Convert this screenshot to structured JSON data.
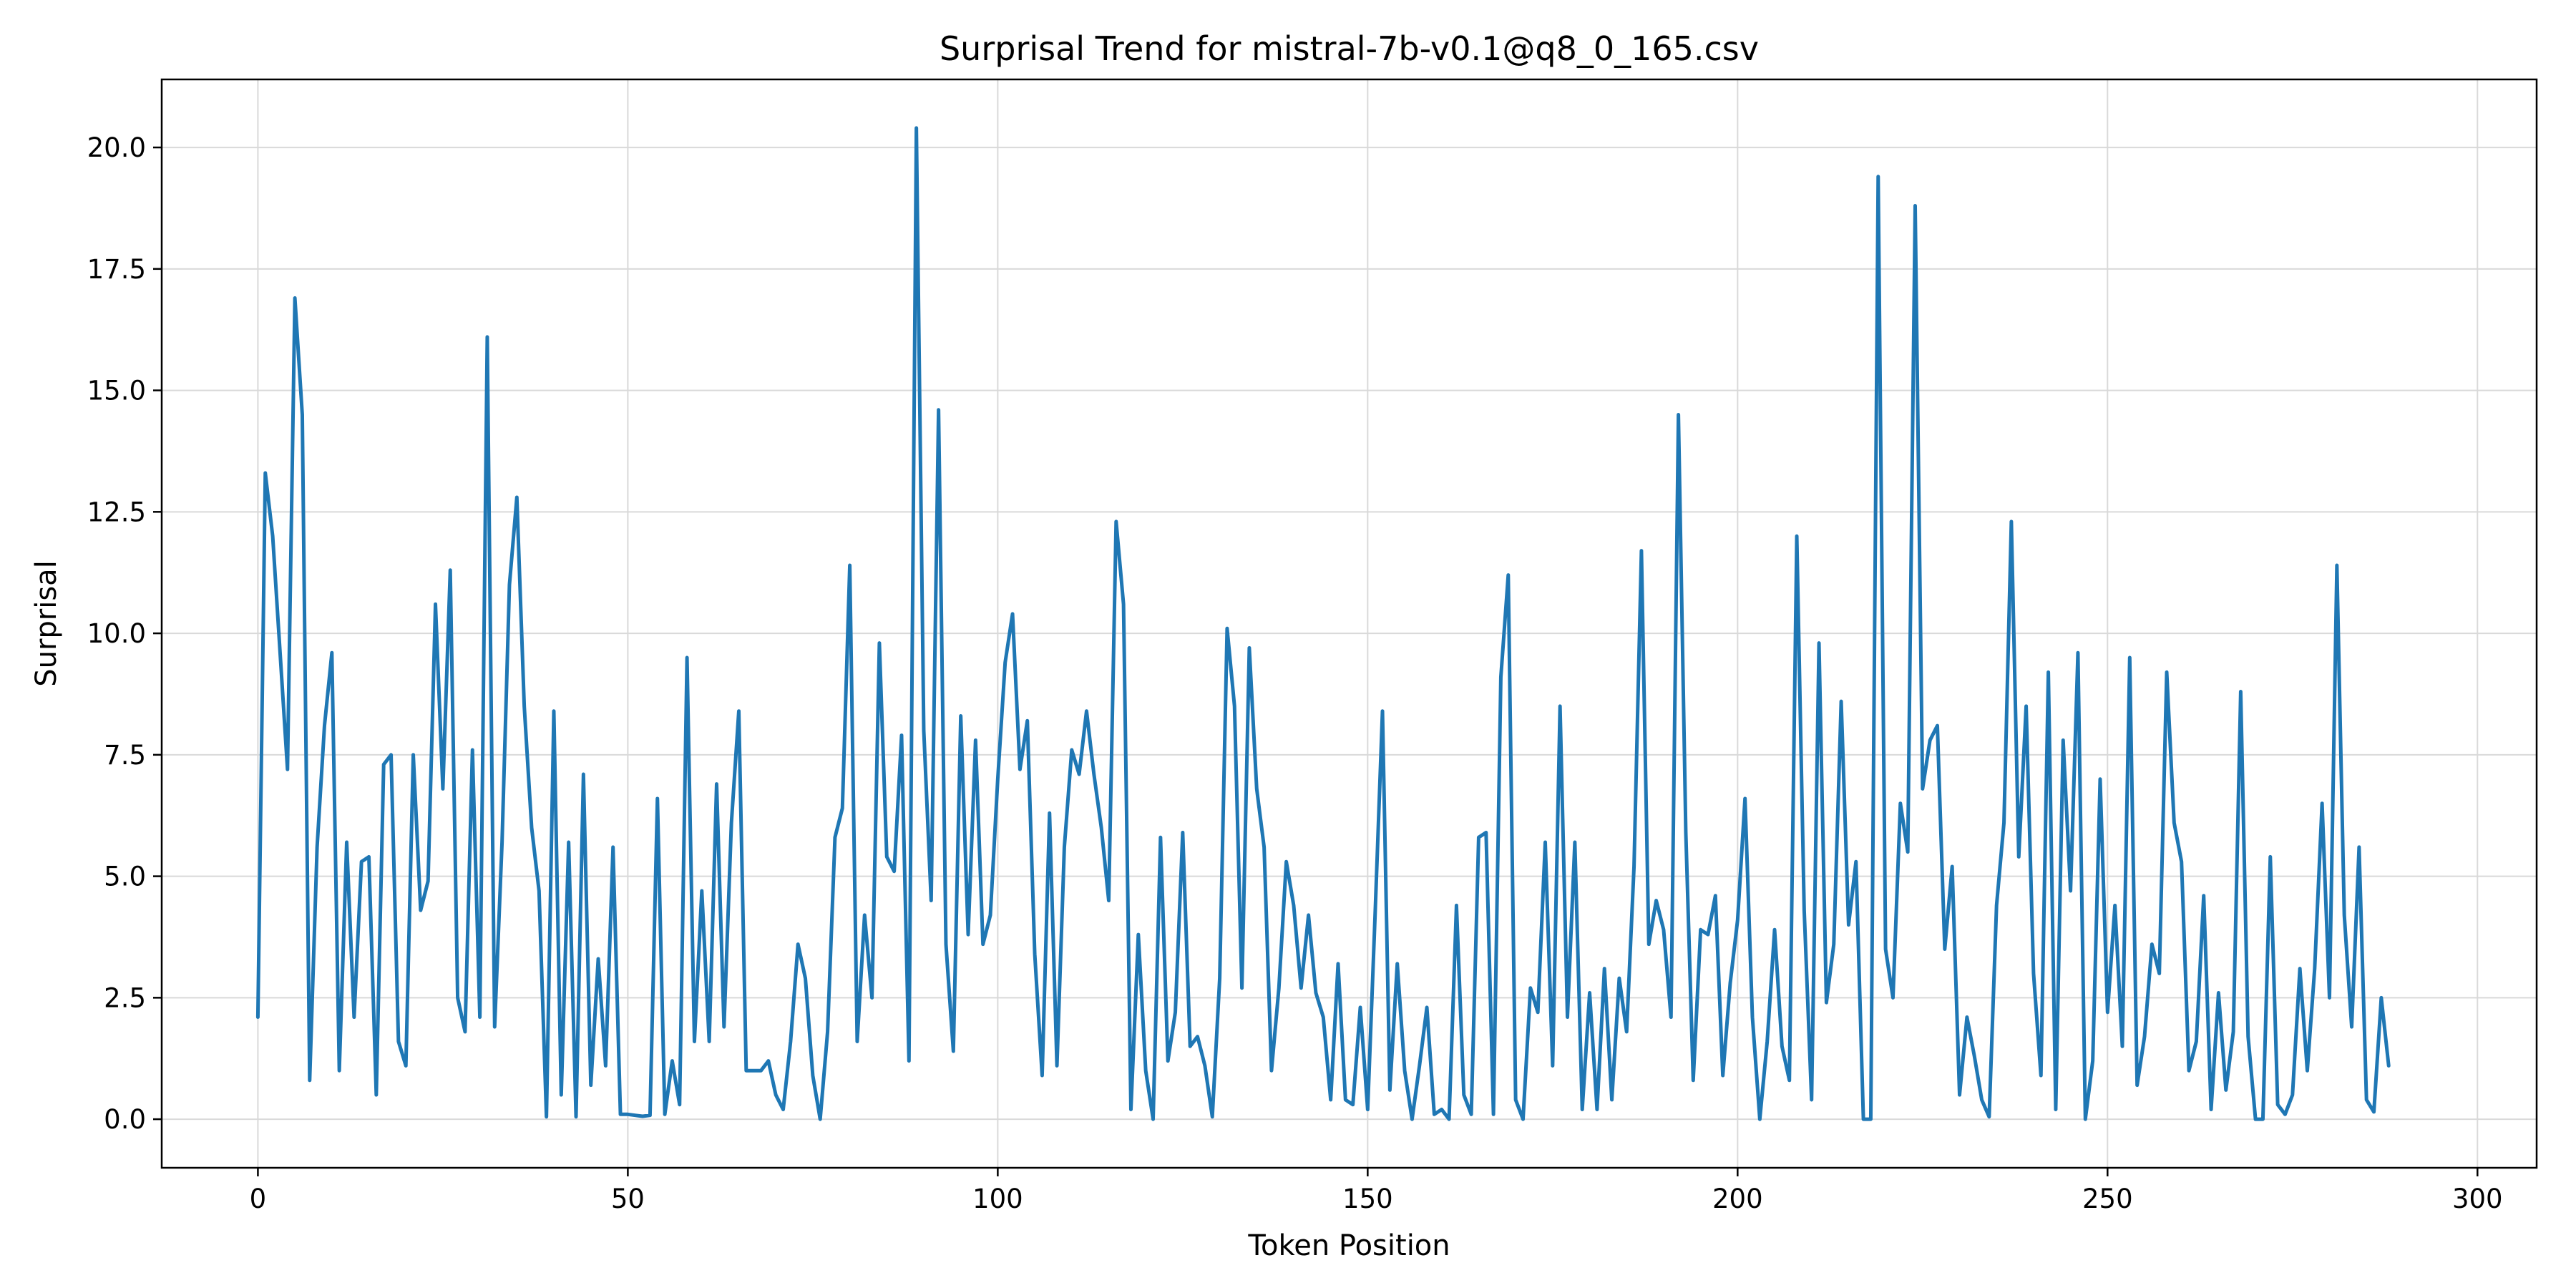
{
  "chart_data": {
    "type": "line",
    "title": "Surprisal Trend for mistral-7b-v0.1@q8_0_165.csv",
    "xlabel": "Token Position",
    "ylabel": "Surprisal",
    "xlim": [
      -13,
      308
    ],
    "ylim": [
      -1,
      21.4
    ],
    "xticks": [
      0,
      50,
      100,
      150,
      200,
      250,
      300
    ],
    "xtick_labels": [
      "0",
      "50",
      "100",
      "150",
      "200",
      "250",
      "300"
    ],
    "yticks": [
      0,
      2.5,
      5,
      7.5,
      10,
      12.5,
      15,
      17.5,
      20
    ],
    "ytick_labels": [
      "0.0",
      "2.5",
      "5.0",
      "7.5",
      "10.0",
      "12.5",
      "15.0",
      "17.5",
      "20.0"
    ],
    "grid": true,
    "line_color": "#1f77b4",
    "series": [
      {
        "values": [
          2.1,
          13.3,
          12.0,
          9.6,
          7.2,
          16.9,
          14.5,
          0.8,
          5.6,
          8.1,
          9.6,
          1.0,
          5.7,
          2.1,
          5.3,
          5.4,
          0.5,
          7.3,
          7.5,
          1.6,
          1.1,
          7.5,
          4.3,
          4.9,
          10.6,
          6.8,
          11.3,
          2.5,
          1.8,
          7.6,
          2.1,
          16.1,
          1.9,
          5.7,
          11.0,
          12.8,
          8.5,
          6.0,
          4.7,
          0.05,
          8.4,
          0.5,
          5.7,
          0.05,
          7.1,
          0.7,
          3.3,
          1.1,
          5.6,
          0.1,
          0.1,
          0.08,
          0.06,
          0.08,
          6.6,
          0.1,
          1.2,
          0.3,
          9.5,
          1.6,
          4.7,
          1.6,
          6.9,
          1.9,
          6.1,
          8.4,
          1.0,
          1.0,
          1.0,
          1.2,
          0.5,
          0.2,
          1.6,
          3.6,
          2.9,
          0.9,
          0.0,
          1.8,
          5.8,
          6.4,
          11.4,
          1.6,
          4.2,
          2.5,
          9.8,
          5.4,
          5.1,
          7.9,
          1.2,
          20.4,
          8.0,
          4.5,
          14.6,
          3.6,
          1.4,
          8.3,
          3.8,
          7.8,
          3.6,
          4.2,
          7.0,
          9.4,
          10.4,
          7.2,
          8.2,
          3.4,
          0.9,
          6.3,
          1.1,
          5.6,
          7.6,
          7.1,
          8.4,
          7.1,
          6.0,
          4.5,
          12.3,
          10.6,
          0.2,
          3.8,
          1.0,
          0.0,
          5.8,
          1.2,
          2.2,
          5.9,
          1.5,
          1.7,
          1.1,
          0.05,
          2.9,
          10.1,
          8.5,
          2.7,
          9.7,
          6.8,
          5.6,
          1.0,
          2.7,
          5.3,
          4.4,
          2.7,
          4.2,
          2.6,
          2.1,
          0.4,
          3.2,
          0.4,
          0.3,
          2.3,
          0.2,
          4.2,
          8.4,
          0.6,
          3.2,
          1.0,
          0.0,
          1.1,
          2.3,
          0.1,
          0.2,
          0.0,
          4.4,
          0.5,
          0.1,
          5.8,
          5.9,
          0.1,
          9.1,
          11.2,
          0.4,
          0.0,
          2.7,
          2.2,
          5.7,
          1.1,
          8.5,
          2.1,
          5.7,
          0.2,
          2.6,
          0.2,
          3.1,
          0.4,
          2.9,
          1.8,
          5.2,
          11.7,
          3.6,
          4.5,
          3.9,
          2.1,
          14.5,
          5.9,
          0.8,
          3.9,
          3.8,
          4.6,
          0.9,
          2.8,
          4.1,
          6.6,
          2.1,
          0.0,
          1.6,
          3.9,
          1.5,
          0.8,
          12.0,
          4.3,
          0.4,
          9.8,
          2.4,
          3.6,
          8.6,
          4.0,
          5.3,
          0.0,
          0.0,
          19.4,
          3.5,
          2.5,
          6.5,
          5.5,
          18.8,
          6.8,
          7.8,
          8.1,
          3.5,
          5.2,
          0.5,
          2.1,
          1.3,
          0.4,
          0.05,
          4.4,
          6.1,
          12.3,
          5.4,
          8.5,
          3.0,
          0.9,
          9.2,
          0.2,
          7.8,
          4.7,
          9.6,
          0.0,
          1.2,
          7.0,
          2.2,
          4.4,
          1.5,
          9.5,
          0.7,
          1.7,
          3.6,
          3.0,
          9.2,
          6.1,
          5.3,
          1.0,
          1.6,
          4.6,
          0.2,
          2.6,
          0.6,
          1.8,
          8.8,
          1.7,
          0.0,
          0.0,
          5.4,
          0.3,
          0.1,
          0.5,
          3.1,
          1.0,
          3.1,
          6.5,
          2.5,
          11.4,
          4.2,
          1.9,
          5.6,
          0.4,
          0.15,
          2.5,
          1.1
        ]
      }
    ]
  }
}
